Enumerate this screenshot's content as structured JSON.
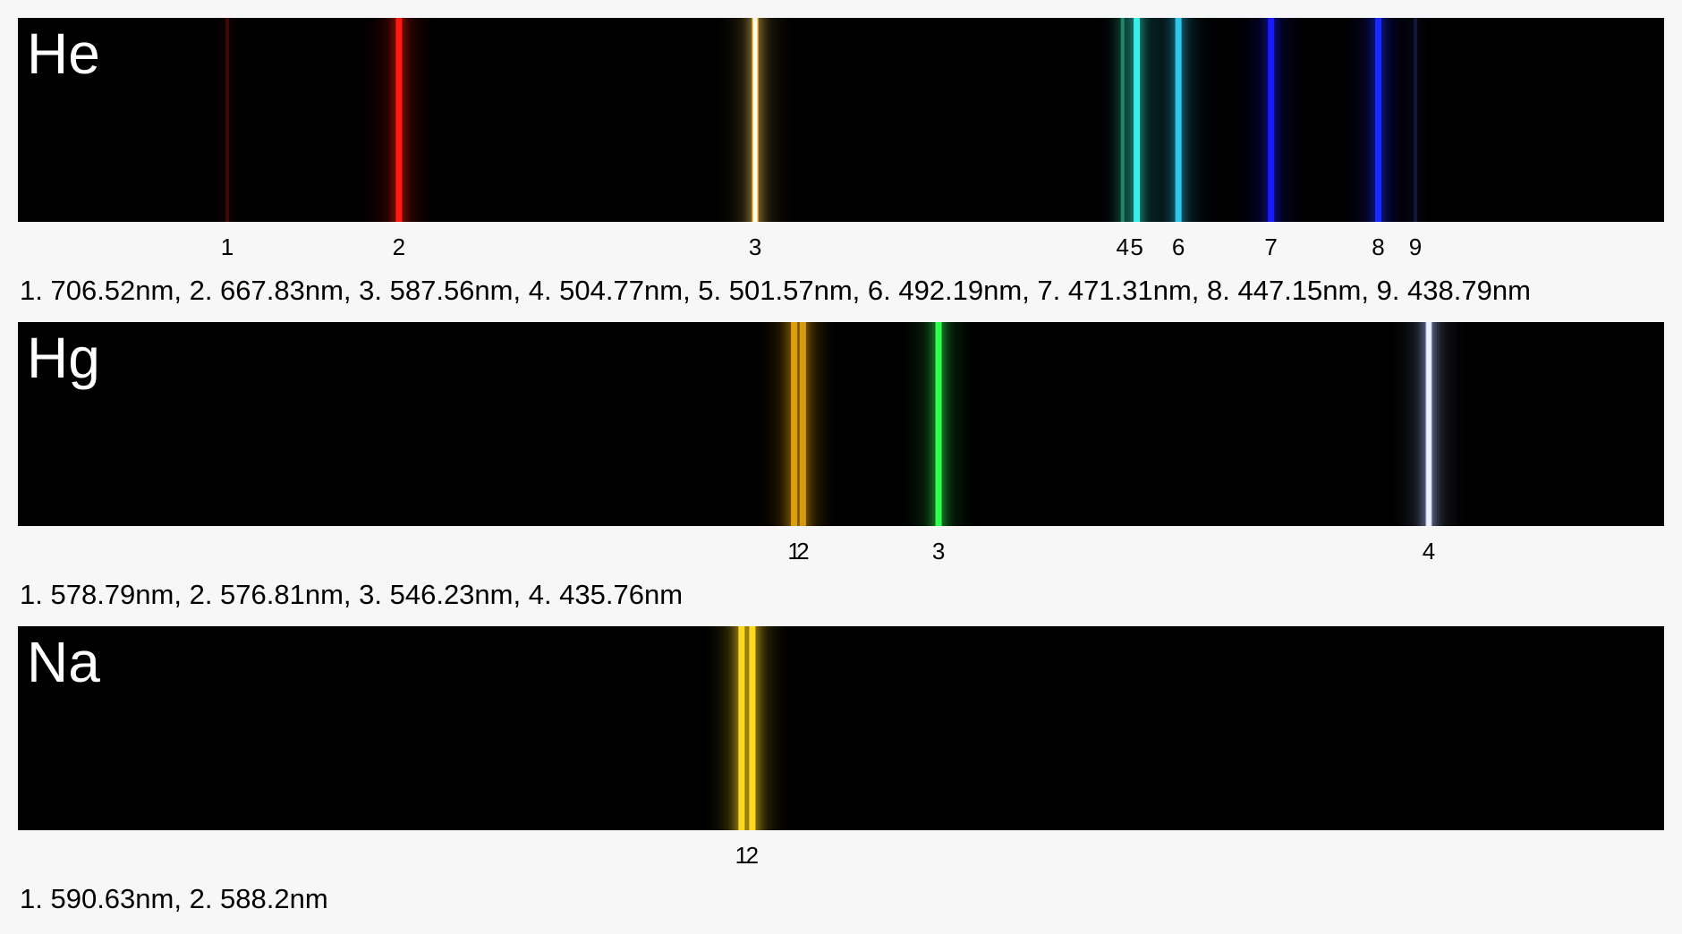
{
  "chart_data": {
    "type": "spectrum",
    "title": "",
    "xlabel": "",
    "ylabel": "",
    "x_unit": "nm",
    "x_range_nm": [
      400,
      750
    ],
    "x_axis_direction": "decreasing-left-to-right",
    "spectra": [
      {
        "label": "He",
        "lines": [
          {
            "number": "1",
            "wavelength_nm": 706.52,
            "color": "#7a1010",
            "intensity": 0.3
          },
          {
            "number": "2",
            "wavelength_nm": 667.83,
            "color": "#ff1a10",
            "intensity": 1.0
          },
          {
            "number": "3",
            "wavelength_nm": 587.56,
            "color": "#ffd060",
            "intensity": 1.0
          },
          {
            "number": "4",
            "wavelength_nm": 504.77,
            "color": "#1f9a6a",
            "intensity": 0.6
          },
          {
            "number": "5",
            "wavelength_nm": 501.57,
            "color": "#38f0e6",
            "intensity": 1.0
          },
          {
            "number": "6",
            "wavelength_nm": 492.19,
            "color": "#2fc6ee",
            "intensity": 0.9
          },
          {
            "number": "7",
            "wavelength_nm": 471.31,
            "color": "#1a1aff",
            "intensity": 0.9
          },
          {
            "number": "8",
            "wavelength_nm": 447.15,
            "color": "#1a2aff",
            "intensity": 1.0
          },
          {
            "number": "9",
            "wavelength_nm": 438.79,
            "color": "#1c2150",
            "intensity": 0.5
          }
        ],
        "caption": "1. 706.52nm, 2. 667.83nm, 3. 587.56nm, 4. 504.77nm, 5. 501.57nm, 6. 492.19nm, 7. 471.31nm, 8. 447.15nm, 9. 438.79nm"
      },
      {
        "label": "Hg",
        "lines": [
          {
            "number": "1",
            "wavelength_nm": 578.79,
            "color": "#e0a010",
            "intensity": 0.9
          },
          {
            "number": "2",
            "wavelength_nm": 576.81,
            "color": "#d69a10",
            "intensity": 0.9
          },
          {
            "number": "3",
            "wavelength_nm": 546.23,
            "color": "#30ff50",
            "intensity": 1.0
          },
          {
            "number": "4",
            "wavelength_nm": 435.76,
            "color": "#b8c8ff",
            "intensity": 1.0
          }
        ],
        "caption": "1. 578.79nm, 2. 576.81nm, 3. 546.23nm, 4. 435.76nm"
      },
      {
        "label": "Na",
        "lines": [
          {
            "number": "1",
            "wavelength_nm": 590.63,
            "color": "#ffd820",
            "intensity": 1.0
          },
          {
            "number": "2",
            "wavelength_nm": 588.2,
            "color": "#ffd820",
            "intensity": 1.0
          }
        ],
        "caption": "1. 590.63nm, 2. 588.2nm"
      }
    ]
  }
}
